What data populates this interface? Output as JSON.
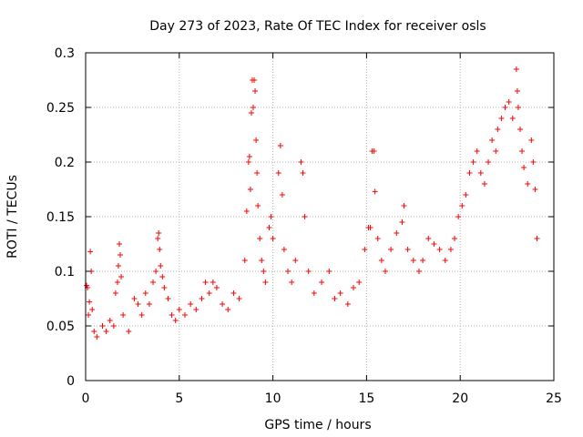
{
  "chart_data": {
    "type": "scatter",
    "title": "Day 273 of 2023, Rate Of TEC Index for receiver osls",
    "xlabel": "GPS time / hours",
    "ylabel": "ROTI / TECUs",
    "xlim": [
      0,
      25
    ],
    "ylim": [
      0,
      0.3
    ],
    "xticks": [
      0,
      5,
      10,
      15,
      20,
      25
    ],
    "yticks": [
      0,
      0.05,
      0.1,
      0.15,
      0.2,
      0.25,
      0.3
    ],
    "grid": true,
    "marker": "+",
    "marker_color": "#ff0000",
    "series": [
      {
        "values": [
          [
            0.05,
            0.087
          ],
          [
            0.1,
            0.085
          ],
          [
            0.15,
            0.06
          ],
          [
            0.2,
            0.072
          ],
          [
            0.25,
            0.118
          ],
          [
            0.3,
            0.1
          ],
          [
            0.35,
            0.065
          ],
          [
            0.45,
            0.045
          ],
          [
            0.6,
            0.04
          ],
          [
            0.9,
            0.05
          ],
          [
            1.1,
            0.045
          ],
          [
            1.3,
            0.055
          ],
          [
            1.5,
            0.05
          ],
          [
            1.6,
            0.08
          ],
          [
            1.7,
            0.09
          ],
          [
            1.75,
            0.105
          ],
          [
            1.8,
            0.125
          ],
          [
            1.85,
            0.115
          ],
          [
            1.9,
            0.095
          ],
          [
            2.0,
            0.06
          ],
          [
            2.3,
            0.045
          ],
          [
            2.6,
            0.075
          ],
          [
            2.8,
            0.07
          ],
          [
            3.0,
            0.06
          ],
          [
            3.2,
            0.08
          ],
          [
            3.4,
            0.07
          ],
          [
            3.6,
            0.09
          ],
          [
            3.75,
            0.1
          ],
          [
            3.85,
            0.13
          ],
          [
            3.9,
            0.135
          ],
          [
            3.95,
            0.12
          ],
          [
            4.0,
            0.105
          ],
          [
            4.1,
            0.095
          ],
          [
            4.2,
            0.085
          ],
          [
            4.4,
            0.075
          ],
          [
            4.6,
            0.06
          ],
          [
            4.8,
            0.055
          ],
          [
            5.0,
            0.065
          ],
          [
            5.3,
            0.06
          ],
          [
            5.6,
            0.07
          ],
          [
            5.9,
            0.065
          ],
          [
            6.2,
            0.075
          ],
          [
            6.4,
            0.09
          ],
          [
            6.6,
            0.08
          ],
          [
            6.8,
            0.09
          ],
          [
            7.0,
            0.085
          ],
          [
            7.3,
            0.07
          ],
          [
            7.6,
            0.065
          ],
          [
            7.9,
            0.08
          ],
          [
            8.2,
            0.075
          ],
          [
            8.5,
            0.11
          ],
          [
            8.6,
            0.155
          ],
          [
            8.7,
            0.2
          ],
          [
            8.75,
            0.205
          ],
          [
            8.8,
            0.175
          ],
          [
            8.85,
            0.245
          ],
          [
            8.9,
            0.275
          ],
          [
            8.95,
            0.25
          ],
          [
            9.0,
            0.275
          ],
          [
            9.05,
            0.265
          ],
          [
            9.1,
            0.22
          ],
          [
            9.15,
            0.19
          ],
          [
            9.2,
            0.16
          ],
          [
            9.3,
            0.13
          ],
          [
            9.4,
            0.11
          ],
          [
            9.5,
            0.1
          ],
          [
            9.6,
            0.09
          ],
          [
            9.8,
            0.14
          ],
          [
            9.9,
            0.15
          ],
          [
            10.0,
            0.13
          ],
          [
            10.3,
            0.19
          ],
          [
            10.4,
            0.215
          ],
          [
            10.5,
            0.17
          ],
          [
            10.6,
            0.12
          ],
          [
            10.8,
            0.1
          ],
          [
            11.0,
            0.09
          ],
          [
            11.2,
            0.11
          ],
          [
            11.5,
            0.2
          ],
          [
            11.6,
            0.19
          ],
          [
            11.7,
            0.15
          ],
          [
            11.9,
            0.1
          ],
          [
            12.2,
            0.08
          ],
          [
            12.6,
            0.09
          ],
          [
            13.0,
            0.1
          ],
          [
            13.3,
            0.075
          ],
          [
            13.6,
            0.08
          ],
          [
            14.0,
            0.07
          ],
          [
            14.3,
            0.085
          ],
          [
            14.6,
            0.09
          ],
          [
            14.9,
            0.12
          ],
          [
            15.1,
            0.14
          ],
          [
            15.2,
            0.14
          ],
          [
            15.3,
            0.21
          ],
          [
            15.4,
            0.21
          ],
          [
            15.45,
            0.173
          ],
          [
            15.6,
            0.13
          ],
          [
            15.8,
            0.11
          ],
          [
            16.0,
            0.1
          ],
          [
            16.3,
            0.12
          ],
          [
            16.6,
            0.135
          ],
          [
            16.9,
            0.145
          ],
          [
            17.0,
            0.16
          ],
          [
            17.2,
            0.12
          ],
          [
            17.5,
            0.11
          ],
          [
            17.8,
            0.1
          ],
          [
            18.0,
            0.11
          ],
          [
            18.3,
            0.13
          ],
          [
            18.6,
            0.125
          ],
          [
            18.9,
            0.12
          ],
          [
            19.2,
            0.11
          ],
          [
            19.5,
            0.12
          ],
          [
            19.7,
            0.13
          ],
          [
            19.9,
            0.15
          ],
          [
            20.1,
            0.16
          ],
          [
            20.3,
            0.17
          ],
          [
            20.5,
            0.19
          ],
          [
            20.7,
            0.2
          ],
          [
            20.9,
            0.21
          ],
          [
            21.1,
            0.19
          ],
          [
            21.3,
            0.18
          ],
          [
            21.5,
            0.2
          ],
          [
            21.7,
            0.22
          ],
          [
            21.9,
            0.21
          ],
          [
            22.0,
            0.23
          ],
          [
            22.2,
            0.24
          ],
          [
            22.4,
            0.25
          ],
          [
            22.6,
            0.255
          ],
          [
            22.8,
            0.24
          ],
          [
            23.0,
            0.285
          ],
          [
            23.05,
            0.265
          ],
          [
            23.1,
            0.25
          ],
          [
            23.2,
            0.23
          ],
          [
            23.3,
            0.21
          ],
          [
            23.4,
            0.195
          ],
          [
            23.6,
            0.18
          ],
          [
            23.8,
            0.22
          ],
          [
            23.9,
            0.2
          ],
          [
            24.0,
            0.175
          ],
          [
            24.1,
            0.13
          ]
        ]
      }
    ]
  }
}
